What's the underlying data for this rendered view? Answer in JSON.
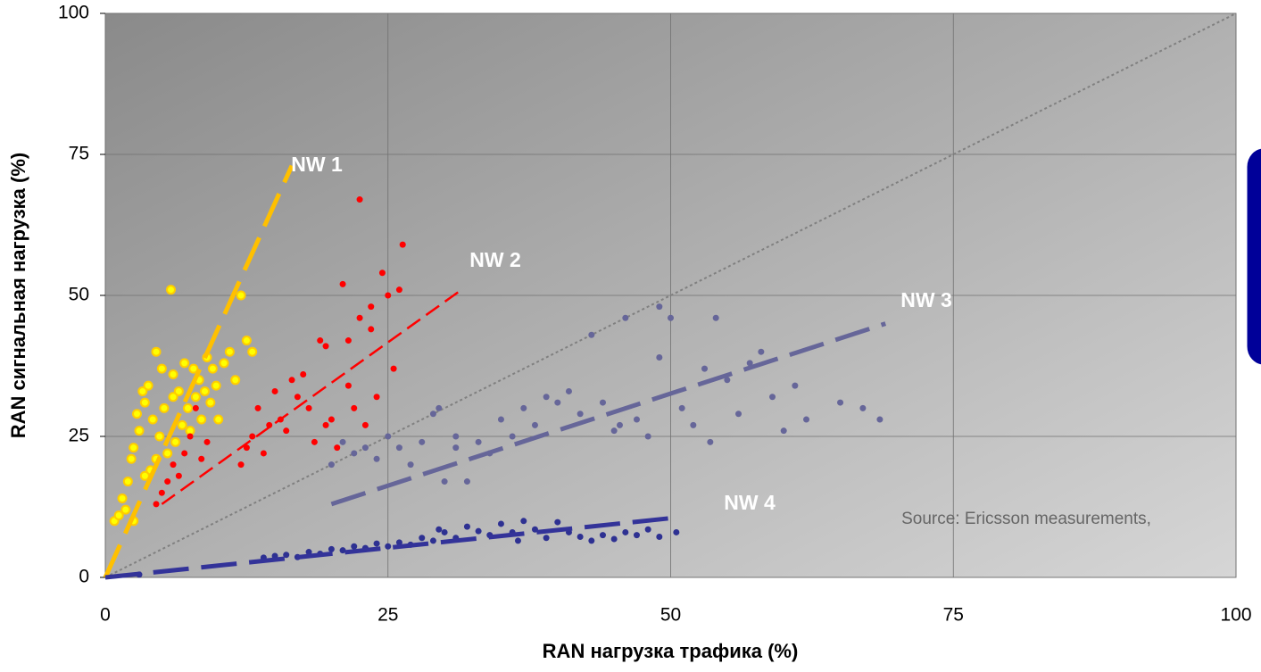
{
  "chart_data": {
    "type": "scatter",
    "x_label": "RAN нагрузка трафика (%)",
    "y_label": "RAN сигнальная нагрузка (%)",
    "annotation": "Source: Ericsson measurements,",
    "xlim": [
      0,
      100
    ],
    "ylim": [
      0,
      100
    ],
    "xticks": [
      0,
      25,
      50,
      75,
      100
    ],
    "yticks": [
      0,
      25,
      50,
      75,
      100
    ],
    "grid": true,
    "reference_line": {
      "x": [
        0,
        100
      ],
      "y": [
        0,
        100
      ],
      "color": "#808080"
    },
    "series": [
      {
        "name": "NW 1",
        "color": "#ffff00",
        "edge_color": "#ffcc00",
        "trend_color": "#ffc000",
        "trend": {
          "x": [
            0,
            16.5
          ],
          "y": [
            0,
            73
          ]
        },
        "x": [
          0.8,
          1.2,
          1.5,
          1.8,
          2.0,
          2.3,
          2.5,
          2.8,
          3.0,
          3.3,
          3.5,
          3.8,
          4.0,
          4.2,
          4.5,
          4.8,
          5.0,
          5.2,
          5.5,
          5.8,
          6.0,
          6.2,
          6.5,
          6.8,
          7.0,
          7.3,
          7.5,
          7.8,
          8.0,
          8.3,
          8.5,
          8.8,
          9.0,
          9.3,
          9.5,
          9.8,
          10.0,
          10.5,
          11.0,
          11.5,
          12.0,
          12.5,
          13.0,
          6.0,
          4.5,
          3.5,
          2.5
        ],
        "y": [
          10,
          11,
          14,
          12,
          17,
          21,
          23,
          29,
          26,
          33,
          31,
          34,
          19,
          28,
          40,
          25,
          37,
          30,
          22,
          51,
          36,
          24,
          33,
          27,
          38,
          30,
          26,
          37,
          32,
          35,
          28,
          33,
          39,
          31,
          37,
          34,
          28,
          38,
          40,
          35,
          50,
          42,
          40,
          32,
          21,
          18,
          10
        ]
      },
      {
        "name": "NW 2",
        "color": "#ff0000",
        "edge_color": "#ff0000",
        "trend_color": "#ff0000",
        "trend": {
          "x": [
            5,
            31.5
          ],
          "y": [
            13,
            51
          ]
        },
        "x": [
          4.5,
          5,
          5.5,
          6,
          6.5,
          7,
          7.5,
          8,
          8.5,
          9,
          12,
          12.5,
          13,
          13.5,
          14,
          14.5,
          15,
          15.5,
          16,
          16.5,
          17,
          17.5,
          18,
          18.5,
          19,
          19.5,
          20,
          20.5,
          21,
          21.5,
          22,
          22.5,
          23,
          23.5,
          24,
          24.5,
          25,
          25.5,
          26,
          22.5,
          26.3,
          23.5,
          21.5,
          19.5
        ],
        "y": [
          13,
          15,
          17,
          20,
          18,
          22,
          25,
          30,
          21,
          24,
          20,
          23,
          25,
          30,
          22,
          27,
          33,
          28,
          26,
          35,
          32,
          36,
          30,
          24,
          42,
          27,
          28,
          23,
          52,
          34,
          30,
          67,
          27,
          48,
          32,
          54,
          50,
          37,
          51,
          46,
          59,
          44,
          42,
          41
        ]
      },
      {
        "name": "NW 3",
        "color": "#666699",
        "edge_color": "#666699",
        "trend_color": "#666699",
        "trend": {
          "x": [
            20,
            69
          ],
          "y": [
            13,
            45
          ]
        },
        "x": [
          20,
          21,
          22,
          23,
          24,
          25,
          26,
          27,
          28,
          29,
          30,
          31,
          32,
          33,
          34,
          35,
          36,
          37,
          38,
          39,
          40,
          41,
          42,
          43,
          44,
          45,
          46,
          47,
          48,
          49,
          50,
          51,
          52,
          53,
          54,
          55,
          56,
          57,
          58,
          59,
          60,
          61,
          62,
          65,
          67,
          68.5,
          49,
          45.5,
          53.5,
          29.5,
          31
        ],
        "y": [
          20,
          24,
          22,
          23,
          21,
          25,
          23,
          20,
          24,
          29,
          17,
          25,
          17,
          24,
          22,
          28,
          25,
          30,
          27,
          32,
          31,
          33,
          29,
          43,
          31,
          26,
          46,
          28,
          25,
          39,
          46,
          30,
          27,
          37,
          46,
          35,
          29,
          38,
          40,
          32,
          26,
          34,
          28,
          31,
          30,
          28,
          48,
          27,
          24,
          30,
          23
        ]
      },
      {
        "name": "NW 4",
        "color": "#2e3192",
        "edge_color": "#2e3192",
        "trend_color": "#333399",
        "trend": {
          "x": [
            0,
            50
          ],
          "y": [
            0,
            10.5
          ]
        },
        "x": [
          14,
          15,
          16,
          17,
          18,
          19,
          20,
          21,
          22,
          23,
          24,
          25,
          26,
          27,
          28,
          29,
          30,
          31,
          32,
          33,
          34,
          35,
          36,
          37,
          38,
          39,
          40,
          41,
          42,
          43,
          44,
          45,
          46,
          47,
          48,
          49,
          50.5,
          3,
          36.5,
          29.5
        ],
        "y": [
          3.5,
          3.8,
          4,
          3.6,
          4.5,
          4.2,
          5,
          4.8,
          5.5,
          5.2,
          6,
          5.5,
          6.2,
          5.8,
          7,
          6.5,
          8,
          7,
          9,
          8.2,
          7.5,
          9.5,
          8,
          10,
          8.5,
          7,
          9.8,
          8,
          7.2,
          6.5,
          7.5,
          6.8,
          8,
          7.5,
          8.5,
          7.2,
          8,
          0.5,
          6.5,
          8.5
        ]
      }
    ]
  }
}
